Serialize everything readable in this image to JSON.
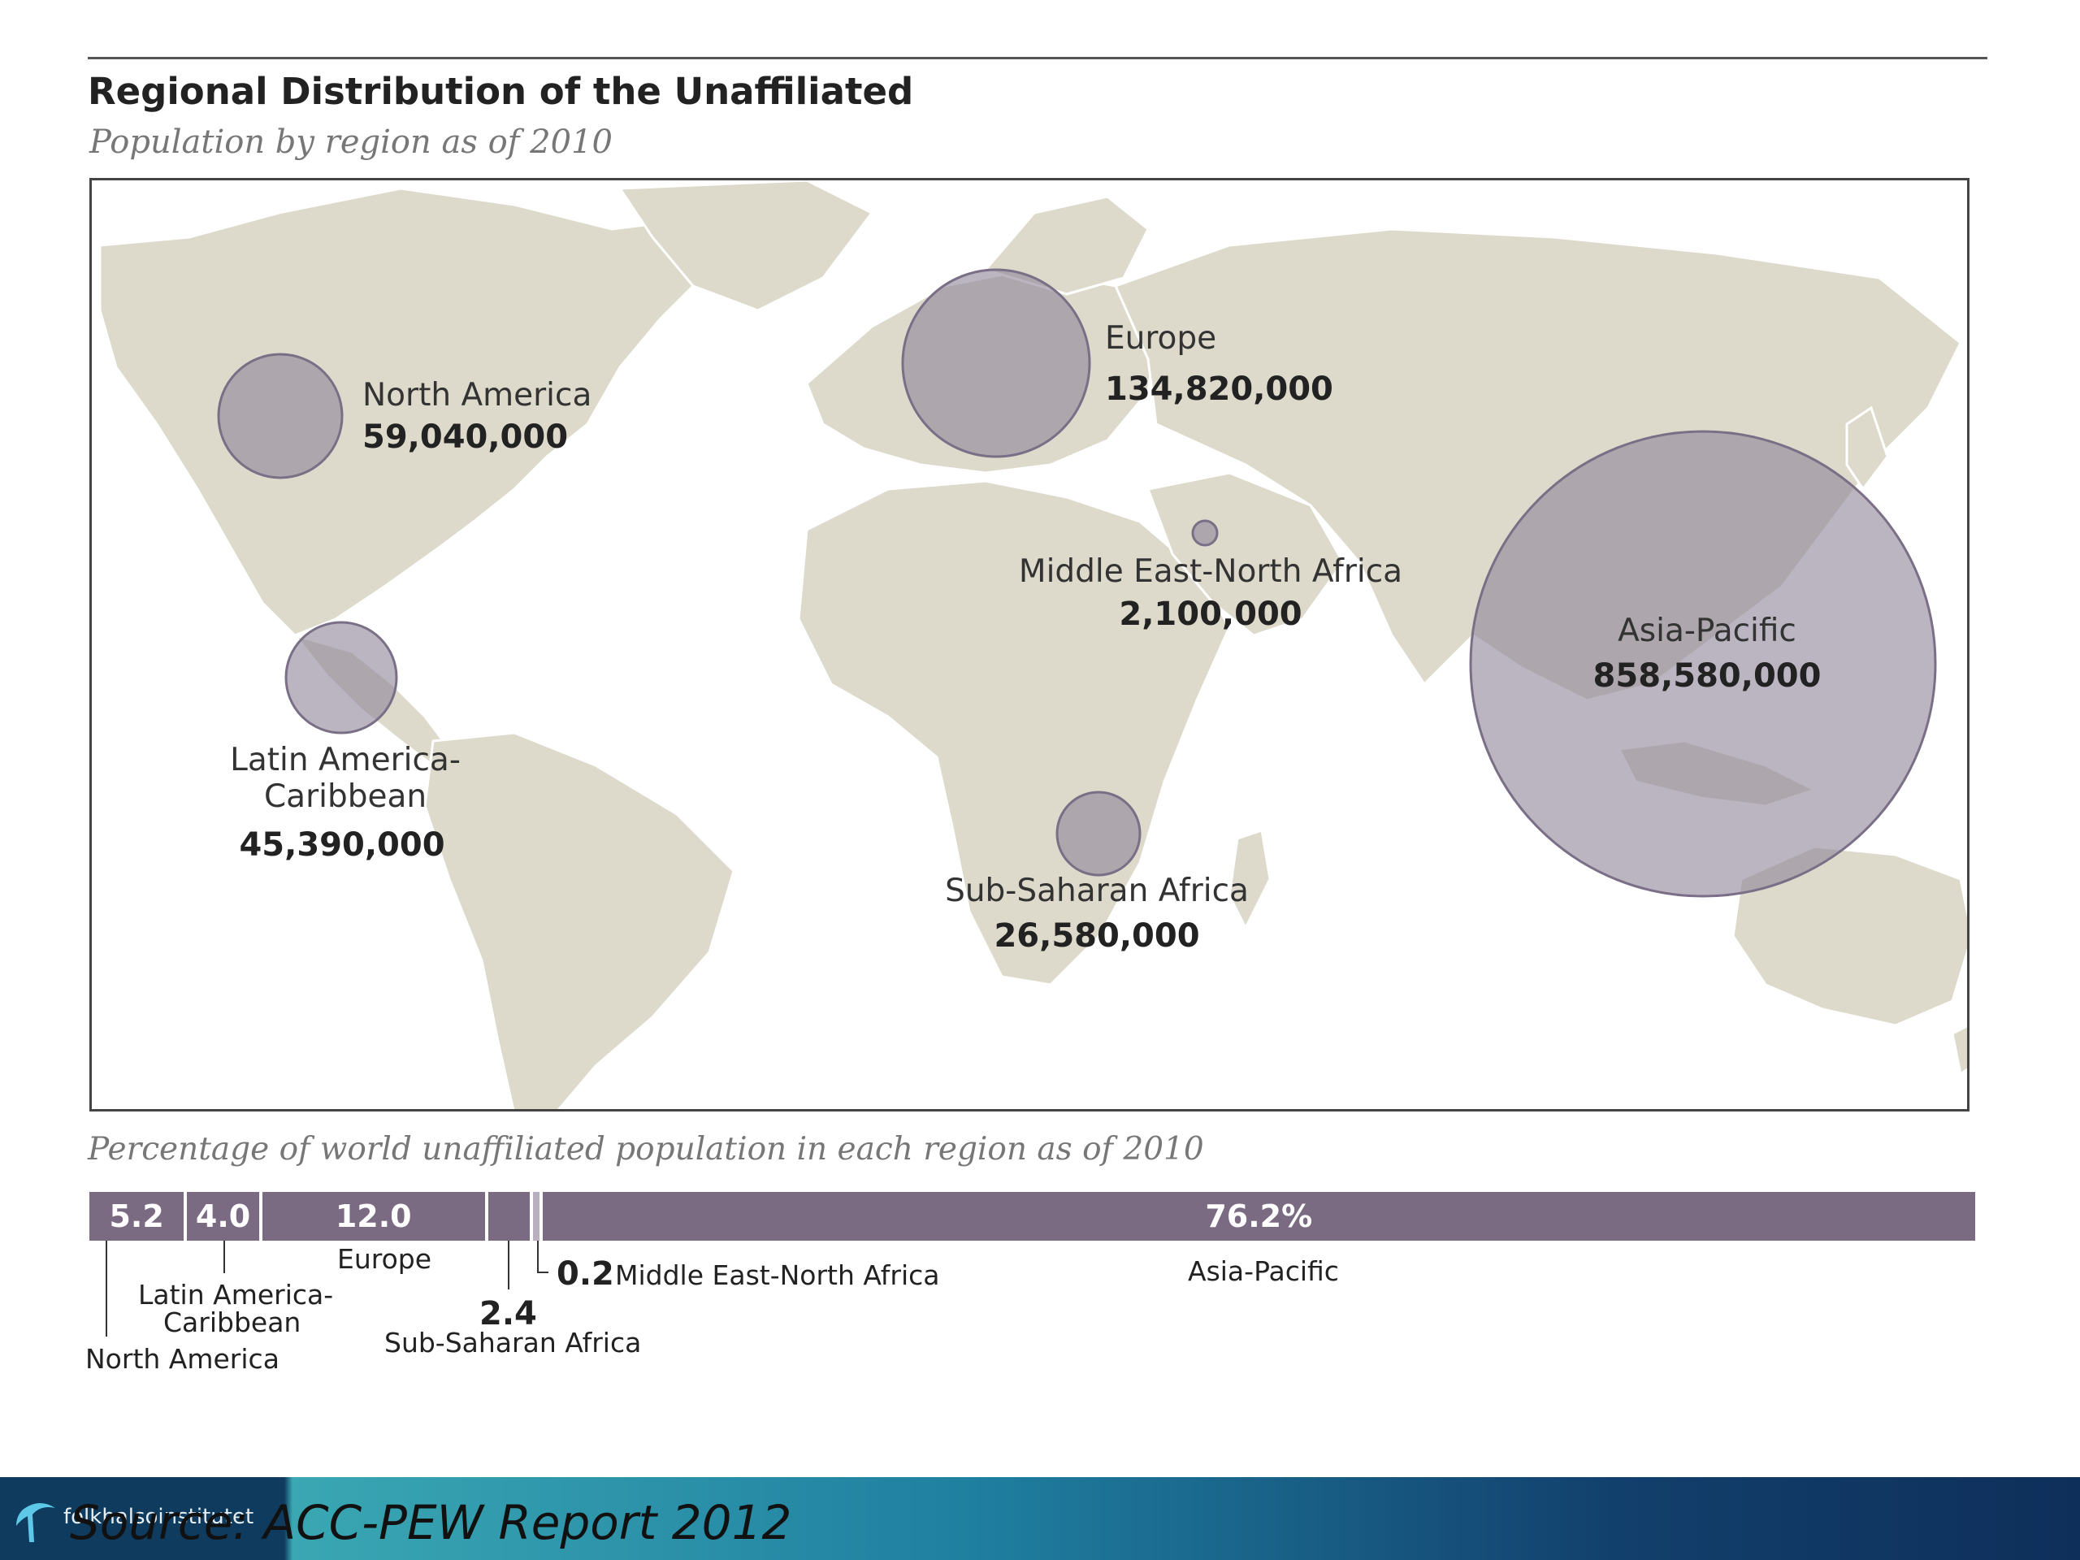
{
  "title": "Regional Distribution of the Unaffiliated",
  "subtitle": "Population by region as of 2010",
  "map": {
    "regions": [
      {
        "id": "north-america",
        "label": "North America",
        "value": "59,040,000",
        "population": 59040000
      },
      {
        "id": "europe",
        "label": "Europe",
        "value": "134,820,000",
        "population": 134820000
      },
      {
        "id": "mena",
        "label": "Middle East-North Africa",
        "value": "2,100,000",
        "population": 2100000
      },
      {
        "id": "asia-pacific",
        "label": "Asia-Pacific",
        "value": "858,580,000",
        "population": 858580000
      },
      {
        "id": "latin-america",
        "label_line1": "Latin America-",
        "label_line2": "Caribbean",
        "value": "45,390,000",
        "population": 45390000
      },
      {
        "id": "ssa",
        "label": "Sub-Saharan Africa",
        "value": "26,580,000",
        "population": 26580000
      }
    ],
    "land_color": "#dddacb",
    "bubble_color": "#8e8398"
  },
  "percentage": {
    "caption": "Percentage of world unaffiliated population in each region as of 2010",
    "segments": [
      {
        "id": "north-america",
        "value": 5.2,
        "text": "5.2",
        "label": "North America"
      },
      {
        "id": "latin-america",
        "value": 4.0,
        "text": "4.0",
        "label_line1": "Latin America-",
        "label_line2": "Caribbean"
      },
      {
        "id": "europe",
        "value": 12.0,
        "text": "12.0",
        "label": "Europe"
      },
      {
        "id": "ssa",
        "value": 2.4,
        "text": "2.4",
        "label": "Sub-Saharan Africa"
      },
      {
        "id": "mena",
        "value": 0.2,
        "text": "0.2",
        "label": "Middle East-North Africa"
      },
      {
        "id": "asia-pacific",
        "value": 76.2,
        "text": "76.2%",
        "label": "Asia-Pacific"
      }
    ],
    "bar_color": "#7a6a82"
  },
  "footer": {
    "brand": "folkhalsoinstitutet",
    "source": "Source: ACC-PEW Report 2012"
  }
}
